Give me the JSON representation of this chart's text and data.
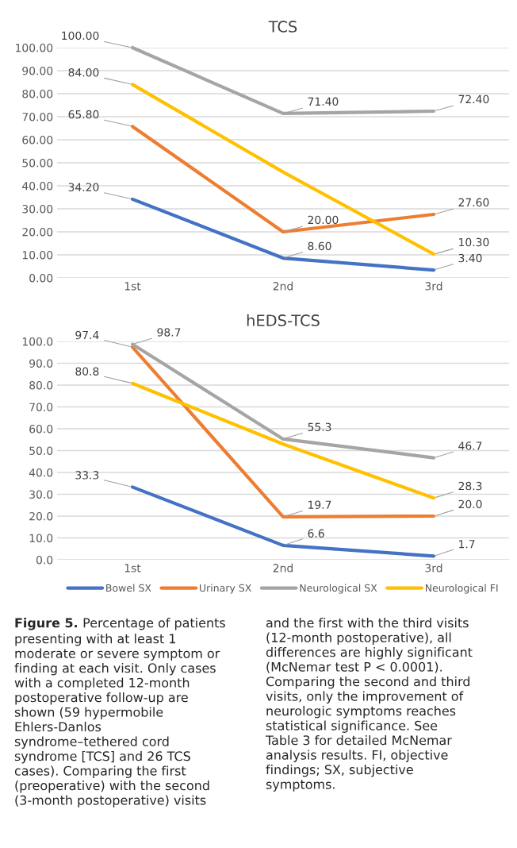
{
  "chart_data": [
    {
      "type": "line",
      "title": "TCS",
      "categories": [
        "1st",
        "2nd",
        "3rd"
      ],
      "series": [
        {
          "color": "#4472c4",
          "values": [
            34.2,
            8.6,
            3.4
          ],
          "value_labels": [
            "34.20",
            "8.60",
            "3.40"
          ]
        },
        {
          "color": "#ed7d31",
          "values": [
            65.8,
            20.0,
            27.6
          ],
          "value_labels": [
            "65.80",
            "20.00",
            "27.60"
          ]
        },
        {
          "color": "#a5a5a5",
          "values": [
            100.0,
            71.4,
            72.4
          ],
          "value_labels": [
            "100.00",
            "71.40",
            "72.40"
          ]
        },
        {
          "color": "#ffc000",
          "values": [
            84.0,
            46,
            10.3
          ],
          "value_labels": [
            "84.00",
            null,
            "10.30"
          ]
        }
      ],
      "ylim": [
        0,
        100
      ],
      "yticks": [
        {
          "value": 0,
          "label": "0.00"
        },
        {
          "value": 10,
          "label": "10.00"
        },
        {
          "value": 20,
          "label": "20.00"
        },
        {
          "value": 30,
          "label": "30.00"
        },
        {
          "value": 40,
          "label": "40.00"
        },
        {
          "value": 50,
          "label": "50.00"
        },
        {
          "value": 60,
          "label": "60.00"
        },
        {
          "value": 70,
          "label": "70.00"
        },
        {
          "value": 80,
          "label": "80.00"
        },
        {
          "value": 90,
          "label": "90.00"
        },
        {
          "value": 100,
          "label": "100.00"
        }
      ],
      "grid": "y",
      "marker": "none",
      "line_style": "solid",
      "legend": false
    },
    {
      "type": "line",
      "title": "hEDS-TCS",
      "categories": [
        "1st",
        "2nd",
        "3rd"
      ],
      "series": [
        {
          "name": "Bowel SX",
          "color": "#4472c4",
          "values": [
            33.3,
            6.6,
            1.7
          ],
          "value_labels": [
            "33.3",
            "6.6",
            "1.7"
          ]
        },
        {
          "name": "Urinary SX",
          "color": "#ed7d31",
          "values": [
            97.4,
            19.7,
            20.0
          ],
          "value_labels": [
            "97.4",
            "19.7",
            "20.0"
          ]
        },
        {
          "name": "Neurological SX",
          "color": "#a5a5a5",
          "values": [
            98.7,
            55.3,
            46.7
          ],
          "value_labels": [
            "98.7",
            "55.3",
            "46.7"
          ]
        },
        {
          "name": "Neurological FI",
          "color": "#ffc000",
          "values": [
            80.8,
            53,
            28.3
          ],
          "value_labels": [
            "80.8",
            null,
            "28.3"
          ]
        }
      ],
      "ylim": [
        0,
        100
      ],
      "yticks": [
        {
          "value": 0,
          "label": "0.0"
        },
        {
          "value": 10,
          "label": "10.0"
        },
        {
          "value": 20,
          "label": "20.0"
        },
        {
          "value": 30,
          "label": "30.0"
        },
        {
          "value": 40,
          "label": "40.0"
        },
        {
          "value": 50,
          "label": "50.0"
        },
        {
          "value": 60,
          "label": "60.0"
        },
        {
          "value": 70,
          "label": "70.0"
        },
        {
          "value": 80,
          "label": "80.0"
        },
        {
          "value": 90,
          "label": "90.0"
        },
        {
          "value": 100,
          "label": "100.0"
        }
      ],
      "grid": "y",
      "marker": "none",
      "line_style": "solid",
      "legend": "bottom",
      "annotations": [
        "Figure 5.",
        "Percentage of patients\npresenting with at least 1\nmoderate or severe symptom or\nfinding at each visit. Only cases\nwith a completed 12-month\npostoperative follow-up are\nshown (59 hypermobile\nEhlers-Danlos\nsyndrome–tethered cord\nsyndrome [TCS] and 26 TCS\ncases). Comparing the first\n(preoperative) with the second\n(3-month postoperative) visits",
        "and the first with the third visits\n(12-month postoperative), all\ndifferences are highly significant\n(McNemar test P < 0.0001).\nComparing the second and third\nvisits, only the improvement of\nneurologic symptoms reaches\nstatistical significance. See\nTable 3 for detailed McNemar\nanalysis results. FI, objective\nfindings; SX, subjective\nsymptoms."
      ]
    }
  ]
}
